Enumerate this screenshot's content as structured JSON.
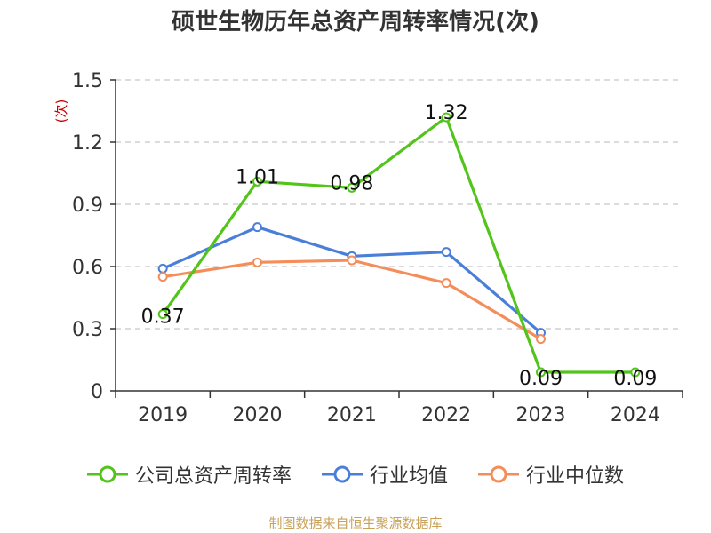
{
  "chart_data": {
    "type": "line",
    "title": "硕世生物历年总资产周转率情况(次)",
    "ylabel": "(次)",
    "categories": [
      "2019",
      "2020",
      "2021",
      "2022",
      "2023",
      "2024"
    ],
    "y_ticks": [
      "0",
      "0.3",
      "0.6",
      "0.9",
      "1.2",
      "1.5"
    ],
    "ylim": [
      0,
      1.5
    ],
    "grid": true,
    "legend_position": "bottom",
    "series": [
      {
        "name": "公司总资产周转率",
        "color": "#52c41a",
        "values": [
          0.37,
          1.01,
          0.98,
          1.32,
          0.09,
          0.09
        ],
        "labels": [
          "0.37",
          "1.01",
          "0.98",
          "1.32",
          "0.09",
          "0.09"
        ]
      },
      {
        "name": "行业均值",
        "color": "#4a7fd9",
        "values": [
          0.59,
          0.79,
          0.65,
          0.67,
          0.28,
          null
        ]
      },
      {
        "name": "行业中位数",
        "color": "#f58d5a",
        "values": [
          0.55,
          0.62,
          0.63,
          0.52,
          0.25,
          null
        ]
      }
    ]
  },
  "source_note": "制图数据来自恒生聚源数据库"
}
